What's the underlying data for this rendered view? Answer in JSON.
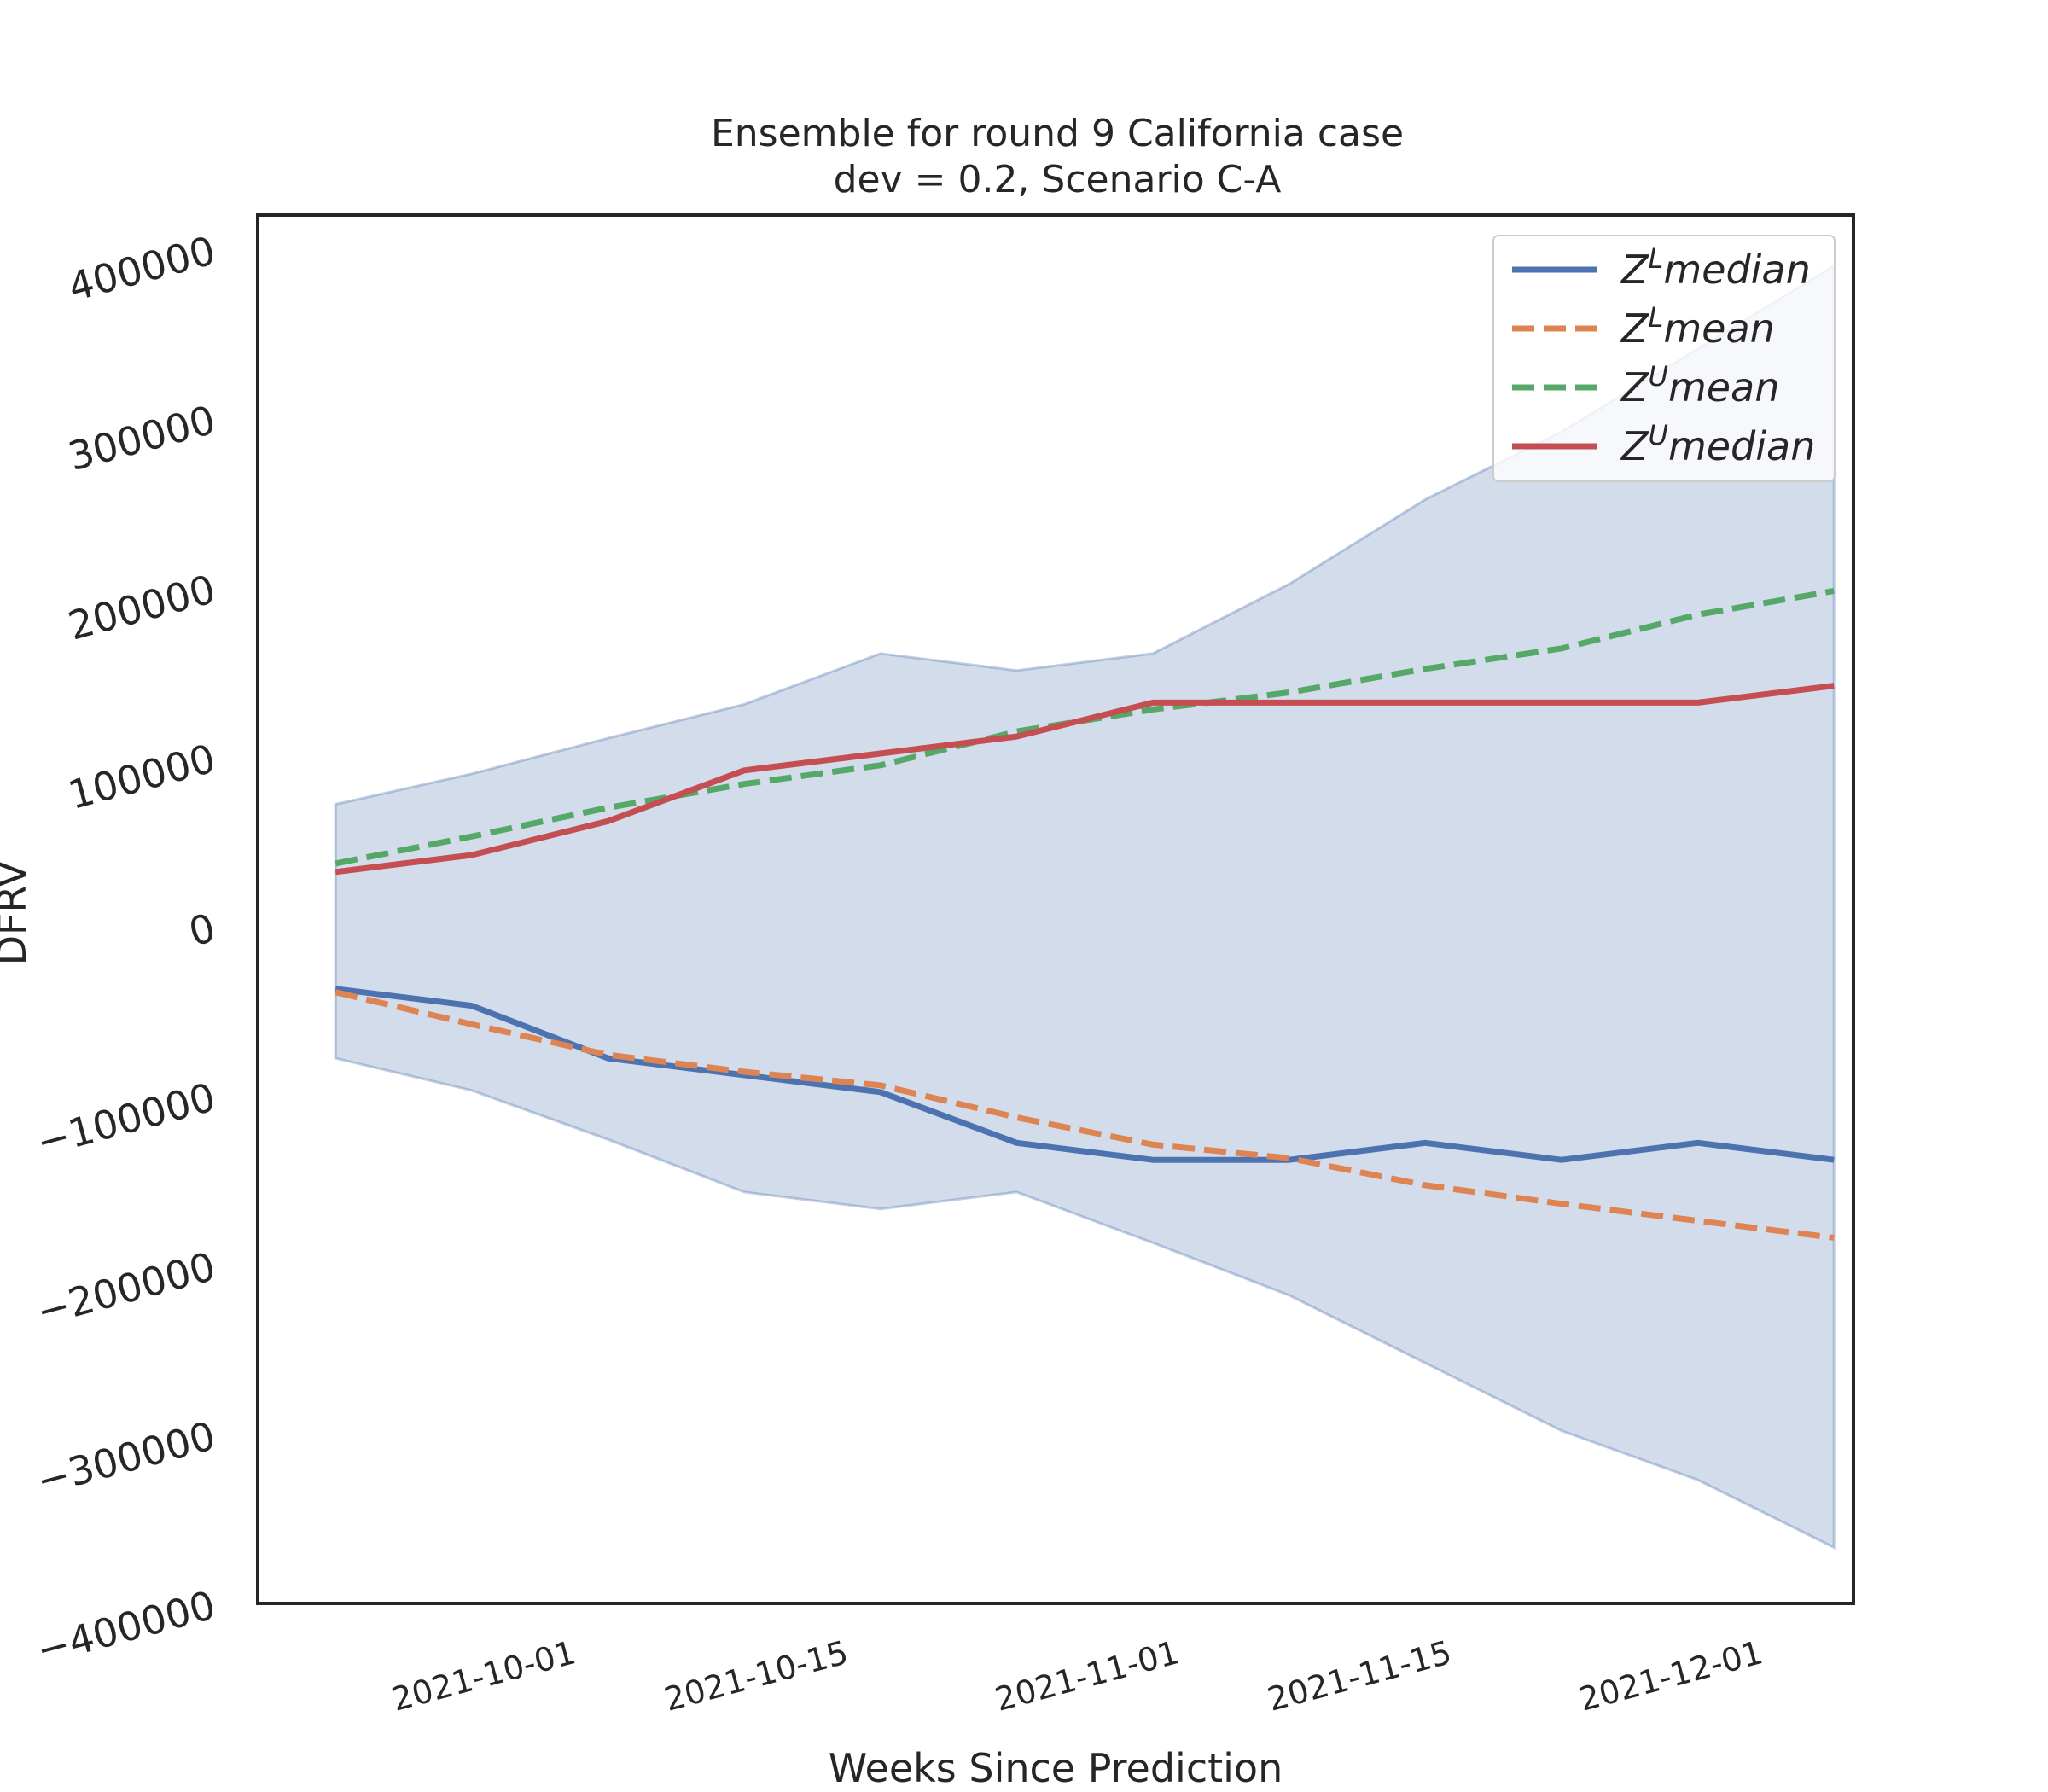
{
  "chart_data": {
    "type": "line",
    "title": "Ensemble for round 9 California case",
    "subtitle": "dev = 0.2, Scenario C-A",
    "xlabel": "Weeks Since Prediction",
    "ylabel": "DFRV",
    "ylim": [
      -400000,
      420000
    ],
    "xlim": [
      "2021-09-15",
      "2021-12-06"
    ],
    "yticks": [
      400000,
      300000,
      200000,
      100000,
      0,
      -100000,
      -200000,
      -300000,
      -400000
    ],
    "ytick_labels": [
      "400000",
      "300000",
      "200000",
      "100000",
      "0",
      "−100000",
      "−200000",
      "−300000",
      "−400000"
    ],
    "xticks": [
      "2021-10-01",
      "2021-10-15",
      "2021-11-01",
      "2021-11-15",
      "2021-12-01"
    ],
    "grid": false,
    "legend_position": "top-right",
    "x": [
      "2021-09-19",
      "2021-09-26",
      "2021-10-03",
      "2021-10-10",
      "2021-10-17",
      "2021-10-24",
      "2021-10-31",
      "2021-11-07",
      "2021-11-14",
      "2021-11-21",
      "2021-11-28",
      "2021-12-05"
    ],
    "band": {
      "color": "#4c72b0",
      "opacity": 0.25,
      "upper": [
        72000,
        90000,
        111000,
        131000,
        161000,
        151000,
        161000,
        202000,
        252000,
        292000,
        341000,
        390000
      ],
      "lower": [
        -78000,
        -97000,
        -126000,
        -157000,
        -167000,
        -157000,
        -187000,
        -218000,
        -258000,
        -298000,
        -327000,
        -367000
      ]
    },
    "series": [
      {
        "name": "Z^L median",
        "label_base": "Z",
        "label_sup": "L",
        "label_rest": "median",
        "color": "#4c72b0",
        "dash": "solid",
        "values": [
          -37000,
          -47000,
          -78000,
          -88000,
          -98000,
          -128000,
          -138000,
          -138000,
          -128000,
          -138000,
          -128000,
          -138000
        ]
      },
      {
        "name": "Z^L mean",
        "label_base": "Z",
        "label_sup": "L",
        "label_rest": "mean",
        "color": "#dd8452",
        "dash": "dashed",
        "values": [
          -39000,
          -58000,
          -76000,
          -86000,
          -94000,
          -113000,
          -129000,
          -137000,
          -153000,
          -164000,
          -174000,
          -184000
        ]
      },
      {
        "name": "Z^U mean",
        "label_base": "Z",
        "label_sup": "U",
        "label_rest": "mean",
        "color": "#55a868",
        "dash": "dashed",
        "values": [
          37000,
          53000,
          70000,
          84000,
          95000,
          115000,
          128000,
          138000,
          152000,
          164000,
          184000,
          198000
        ]
      },
      {
        "name": "Z^U median",
        "label_base": "Z",
        "label_sup": "U",
        "label_rest": "median",
        "color": "#c44e52",
        "dash": "solid",
        "values": [
          32000,
          42000,
          62000,
          92000,
          102000,
          112000,
          132000,
          132000,
          132000,
          132000,
          132000,
          142000
        ]
      }
    ]
  }
}
